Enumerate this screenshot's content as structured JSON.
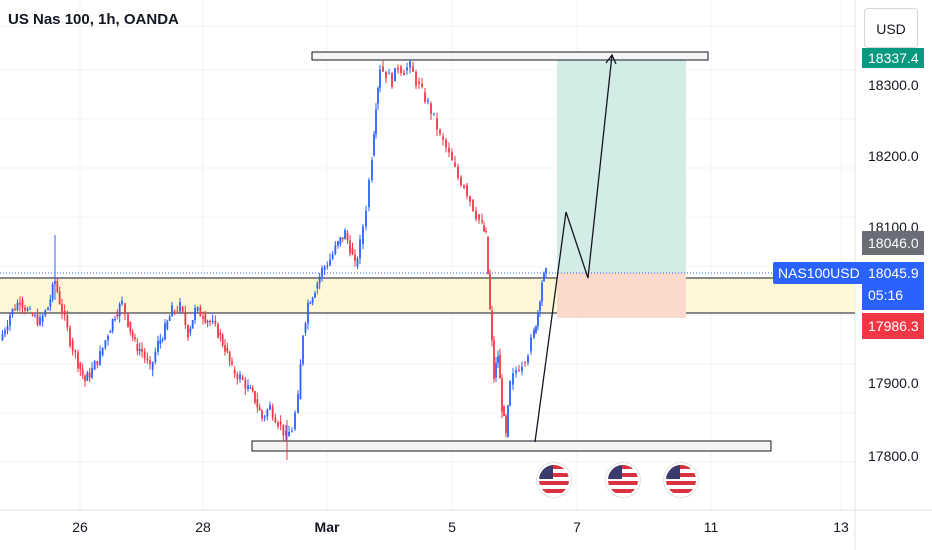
{
  "header": {
    "title": "US Nas 100, 1h, OANDA",
    "currency": "USD"
  },
  "price_axis": {
    "ticks": [
      "18300.0",
      "18200.0",
      "18100.0",
      "17900.0",
      "17800.0"
    ],
    "badges": {
      "top_target": "18337.4",
      "hover_price": "18046.0",
      "last_price": "18045.9",
      "countdown": "05:16",
      "stop_price": "17986.3"
    },
    "symbol_tag": "NAS100USD"
  },
  "time_axis": {
    "ticks": [
      "26",
      "28",
      "Mar",
      "5",
      "7",
      "11",
      "13"
    ]
  },
  "events": [
    {
      "name": "us-event-1"
    },
    {
      "name": "us-event-2"
    },
    {
      "name": "us-event-3"
    }
  ],
  "colors": {
    "up": "#2962ff",
    "down": "#f23645",
    "grid": "#f0f3fa",
    "zone_yellow": "#fff8d6",
    "target_zone": "#d3ece6",
    "stop_zone": "#fbd9cc",
    "badge_green": "#089981",
    "badge_gray": "#6a6d78",
    "badge_blue": "#2962ff",
    "badge_red": "#f23645"
  },
  "chart_data": {
    "type": "candlestick",
    "interval": "1h",
    "symbol": "NAS100USD",
    "ylim": [
      17780,
      18345
    ],
    "x_labels": [
      "26",
      "28",
      "Mar",
      "5",
      "7",
      "11",
      "13"
    ],
    "path_close": [
      [
        0,
        17950
      ],
      [
        10,
        17985
      ],
      [
        20,
        18005
      ],
      [
        30,
        17985
      ],
      [
        40,
        17975
      ],
      [
        48,
        17995
      ],
      [
        55,
        18030
      ],
      [
        62,
        17990
      ],
      [
        70,
        17950
      ],
      [
        78,
        17920
      ],
      [
        85,
        17895
      ],
      [
        92,
        17910
      ],
      [
        100,
        17930
      ],
      [
        108,
        17960
      ],
      [
        115,
        17985
      ],
      [
        122,
        18000
      ],
      [
        128,
        17975
      ],
      [
        135,
        17945
      ],
      [
        142,
        17935
      ],
      [
        150,
        17910
      ],
      [
        158,
        17945
      ],
      [
        165,
        17965
      ],
      [
        172,
        17990
      ],
      [
        180,
        17995
      ],
      [
        188,
        17960
      ],
      [
        195,
        17990
      ],
      [
        203,
        17985
      ],
      [
        210,
        17975
      ],
      [
        218,
        17960
      ],
      [
        225,
        17940
      ],
      [
        232,
        17910
      ],
      [
        240,
        17900
      ],
      [
        248,
        17885
      ],
      [
        255,
        17870
      ],
      [
        262,
        17845
      ],
      [
        270,
        17860
      ],
      [
        278,
        17840
      ],
      [
        286,
        17820
      ],
      [
        292,
        17830
      ],
      [
        298,
        17870
      ],
      [
        303,
        17960
      ],
      [
        308,
        18000
      ],
      [
        315,
        18020
      ],
      [
        322,
        18045
      ],
      [
        330,
        18060
      ],
      [
        338,
        18080
      ],
      [
        345,
        18095
      ],
      [
        350,
        18075
      ],
      [
        355,
        18050
      ],
      [
        360,
        18080
      ],
      [
        366,
        18130
      ],
      [
        372,
        18200
      ],
      [
        376,
        18270
      ],
      [
        380,
        18320
      ],
      [
        386,
        18310
      ],
      [
        392,
        18300
      ],
      [
        398,
        18320
      ],
      [
        404,
        18315
      ],
      [
        410,
        18320
      ],
      [
        416,
        18300
      ],
      [
        422,
        18285
      ],
      [
        428,
        18270
      ],
      [
        434,
        18250
      ],
      [
        440,
        18225
      ],
      [
        446,
        18210
      ],
      [
        452,
        18190
      ],
      [
        458,
        18170
      ],
      [
        464,
        18160
      ],
      [
        470,
        18140
      ],
      [
        476,
        18120
      ],
      [
        482,
        18105
      ],
      [
        486,
        18090
      ],
      [
        490,
        17990
      ],
      [
        494,
        17900
      ],
      [
        498,
        17930
      ],
      [
        502,
        17860
      ],
      [
        506,
        17820
      ],
      [
        510,
        17890
      ],
      [
        516,
        17910
      ],
      [
        522,
        17920
      ],
      [
        528,
        17935
      ],
      [
        534,
        17960
      ],
      [
        538,
        17990
      ],
      [
        542,
        18030
      ],
      [
        546,
        18040
      ]
    ]
  }
}
